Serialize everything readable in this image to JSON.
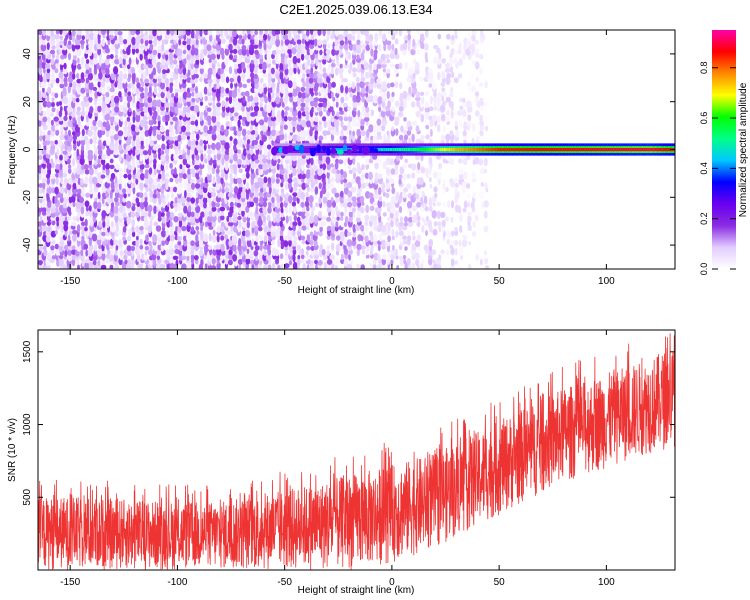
{
  "title": "C2E1.2025.039.06.13.E34",
  "colorbar": {
    "label": "Normalized spectral amplitude",
    "ticks": [
      0.0,
      0.2,
      0.4,
      0.6,
      0.8
    ],
    "tick_labels": [
      "0.0",
      "0.2",
      "0.4",
      "0.6",
      "0.8"
    ],
    "range": [
      0.0,
      0.95
    ],
    "stops": [
      "#ffffff",
      "#e2ccff",
      "#8a2be2",
      "#6a00f0",
      "#0000ff",
      "#00c8ff",
      "#00ff88",
      "#00ff00",
      "#ffff00",
      "#ff8800",
      "#ff0000",
      "#ff00aa"
    ]
  },
  "colors": {
    "snr_line": "#ee3333",
    "axis": "#000000"
  },
  "chart_data": [
    {
      "type": "heatmap",
      "name": "spectrogram",
      "title": "C2E1.2025.039.06.13.E34",
      "xlabel": "Height of straight line (km)",
      "ylabel": "Frequency (Hz)",
      "xlim": [
        -165,
        132
      ],
      "ylim": [
        -50,
        50
      ],
      "xticks": [
        -150,
        -100,
        -50,
        0,
        50,
        100
      ],
      "xtick_labels": [
        "-150",
        "-100",
        "-50",
        "0",
        "50",
        "100"
      ],
      "yticks": [
        -40,
        -20,
        0,
        20,
        40
      ],
      "ytick_labels": [
        "-40",
        "-20",
        "0",
        "20",
        "40"
      ],
      "noise_extent_km": 45,
      "ridge": {
        "frequency_hz": 0,
        "start_km": -55,
        "end_km": 132,
        "amplitude_profile": [
          {
            "x": -55,
            "v": 0.3
          },
          {
            "x": -40,
            "v": 0.3
          },
          {
            "x": -30,
            "v": 0.42
          },
          {
            "x": -10,
            "v": 0.45
          },
          {
            "x": 10,
            "v": 0.55
          },
          {
            "x": 30,
            "v": 0.75
          },
          {
            "x": 50,
            "v": 0.85
          },
          {
            "x": 120,
            "v": 0.9
          },
          {
            "x": 132,
            "v": 0.85
          }
        ]
      }
    },
    {
      "type": "line",
      "name": "snr",
      "xlabel": "Height of straight line (km)",
      "ylabel": "SNR (10 * v/v)",
      "xlim": [
        -165,
        132
      ],
      "ylim": [
        0,
        1650
      ],
      "xticks": [
        -150,
        -100,
        -50,
        0,
        50,
        100
      ],
      "xtick_labels": [
        "-150",
        "-100",
        "-50",
        "0",
        "50",
        "100"
      ],
      "yticks": [
        500,
        1000,
        1500
      ],
      "ytick_labels": [
        "500",
        "1000",
        "1500"
      ],
      "series": [
        {
          "name": "SNR",
          "x": [
            -165,
            -140,
            -120,
            -100,
            -80,
            -60,
            -40,
            -20,
            0,
            20,
            40,
            60,
            80,
            100,
            120,
            132
          ],
          "lower": [
            0,
            0,
            0,
            0,
            0,
            0,
            0,
            0,
            50,
            150,
            300,
            450,
            600,
            700,
            800,
            850
          ],
          "upper": [
            500,
            500,
            480,
            470,
            470,
            520,
            580,
            650,
            720,
            800,
            950,
            1100,
            1250,
            1350,
            1450,
            1550
          ]
        }
      ]
    }
  ]
}
